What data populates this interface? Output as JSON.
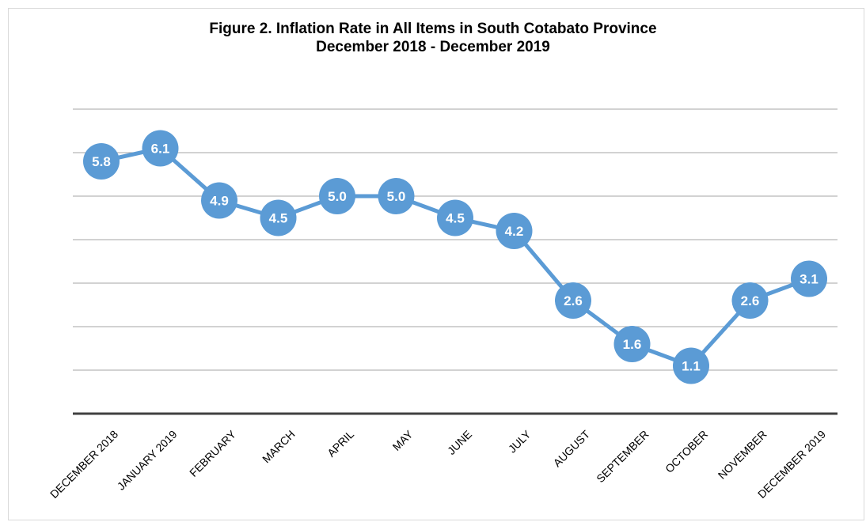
{
  "chart_data": {
    "type": "line",
    "title": "Figure 2. Inflation Rate in All Items in South Cotabato Province",
    "subtitle": "December 2018 - December 2019",
    "categories": [
      "DECEMBER 2018",
      "JANUARY 2019",
      "FEBRUARY",
      "MARCH",
      "APRIL",
      "MAY",
      "JUNE",
      "JULY",
      "AUGUST",
      "SEPTEMBER",
      "OCTOBER",
      "NOVEMBER",
      "DECEMBER 2019"
    ],
    "series": [
      {
        "values": [
          5.8,
          6.1,
          4.9,
          4.5,
          5.0,
          5.0,
          4.5,
          4.2,
          2.6,
          1.6,
          1.1,
          2.6,
          3.1
        ]
      }
    ],
    "ylim": [
      0,
      7
    ],
    "grid": true,
    "legend": "none",
    "colors": {
      "line": "#5b9bd5",
      "gridline": "#a6a6a6",
      "axis": "#404040",
      "label_text": "#ffffff"
    }
  }
}
